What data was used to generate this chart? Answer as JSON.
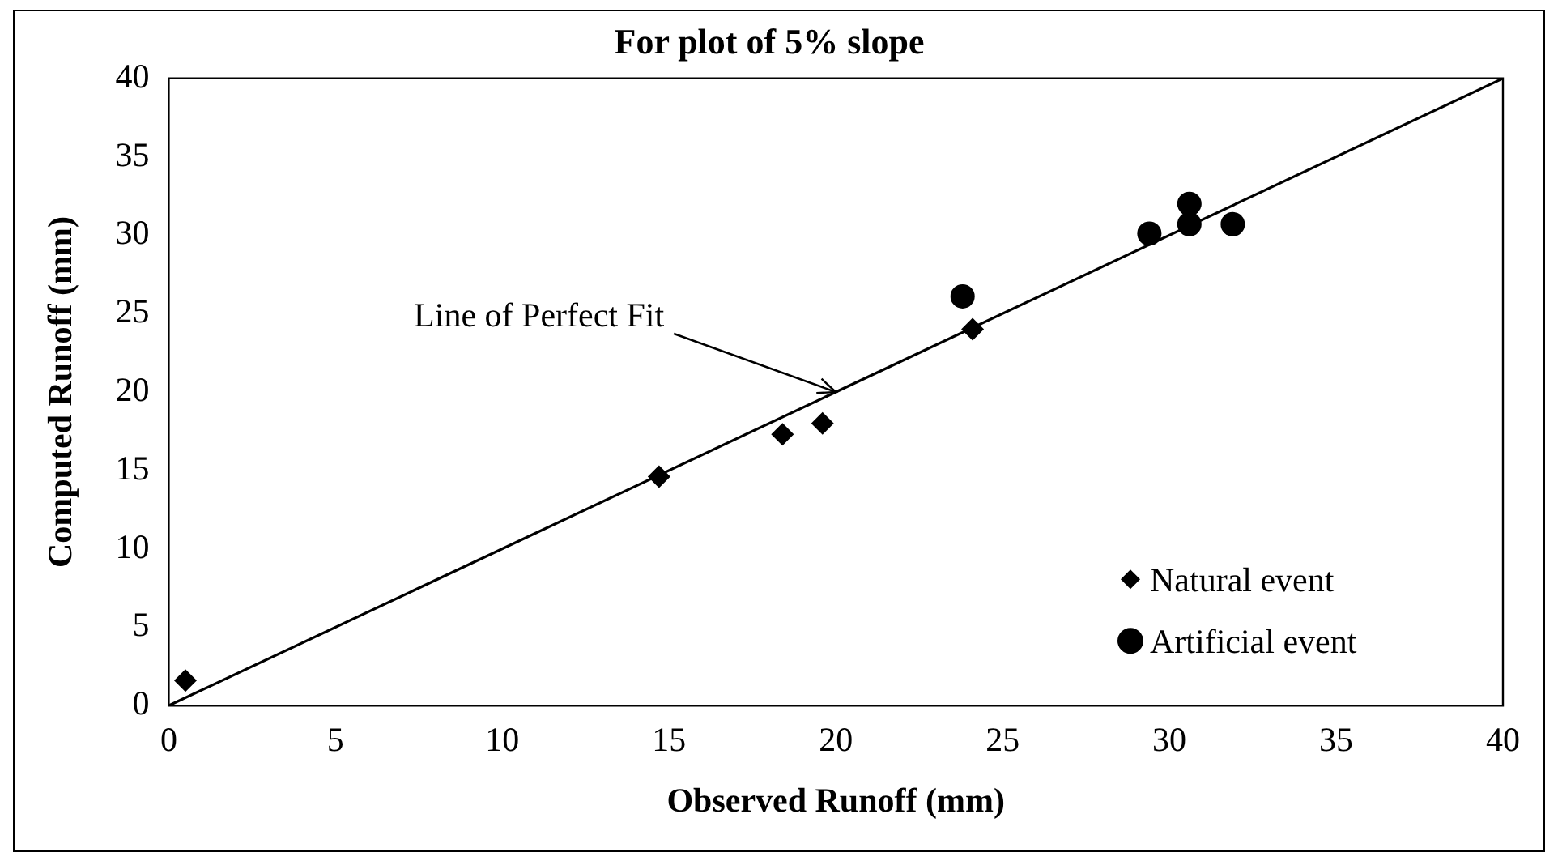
{
  "chart_data": {
    "type": "scatter",
    "title": "For plot of 5% slope",
    "xlabel": "Observed Runoff (mm)",
    "ylabel": "Computed Runoff (mm)",
    "xlim": [
      0,
      40
    ],
    "xticks": [
      0,
      5,
      10,
      15,
      20,
      25,
      30,
      35,
      40
    ],
    "ylim": [
      0,
      40
    ],
    "yticks": [
      0,
      5,
      10,
      15,
      20,
      25,
      30,
      35,
      40
    ],
    "grid": false,
    "legend": "bottom right",
    "annotations": [
      {
        "text": "Line of Perfect Fit",
        "x": 20,
        "y": 20
      }
    ],
    "series": [
      {
        "name": "Natural event",
        "color": "#000000",
        "marker": "diamond",
        "x": [
          0.5,
          14.7,
          18.4,
          19.6,
          24.1
        ],
        "values": [
          1.6,
          14.6,
          17.3,
          18,
          24
        ]
      },
      {
        "name": "Artificial event",
        "color": "#000000",
        "marker": "circle",
        "x": [
          23.8,
          29.4,
          30.6,
          30.6,
          31.9
        ],
        "values": [
          26.1,
          30.1,
          32,
          30.7,
          30.7
        ]
      },
      {
        "type": "line",
        "color": "#000000",
        "marker": "none",
        "line_style": "solid",
        "x": [
          0,
          40
        ],
        "values": [
          0,
          40
        ]
      }
    ]
  }
}
